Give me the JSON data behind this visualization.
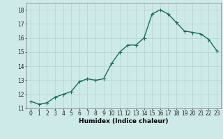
{
  "x": [
    0,
    1,
    2,
    3,
    4,
    5,
    6,
    7,
    8,
    9,
    10,
    11,
    12,
    13,
    14,
    15,
    16,
    17,
    18,
    19,
    20,
    21,
    22,
    23
  ],
  "y": [
    11.5,
    11.3,
    11.4,
    11.8,
    12.0,
    12.2,
    12.9,
    13.1,
    13.0,
    13.1,
    14.2,
    15.0,
    15.5,
    15.5,
    16.0,
    17.7,
    18.0,
    17.7,
    17.1,
    16.5,
    16.4,
    16.3,
    15.9,
    15.1
  ],
  "line_color": "#1a6b5a",
  "marker_color": "#1a6b5a",
  "bg_color": "#ceeae8",
  "grid_color": "#b0d4d2",
  "xlabel": "Humidex (Indice chaleur)",
  "xlim": [
    -0.5,
    23.5
  ],
  "ylim": [
    11,
    18.5
  ],
  "yticks": [
    11,
    12,
    13,
    14,
    15,
    16,
    17,
    18
  ],
  "xticks": [
    0,
    1,
    2,
    3,
    4,
    5,
    6,
    7,
    8,
    9,
    10,
    11,
    12,
    13,
    14,
    15,
    16,
    17,
    18,
    19,
    20,
    21,
    22,
    23
  ],
  "tick_fontsize": 5.5,
  "xlabel_fontsize": 6.5,
  "linewidth": 1.0,
  "markersize": 2.0
}
